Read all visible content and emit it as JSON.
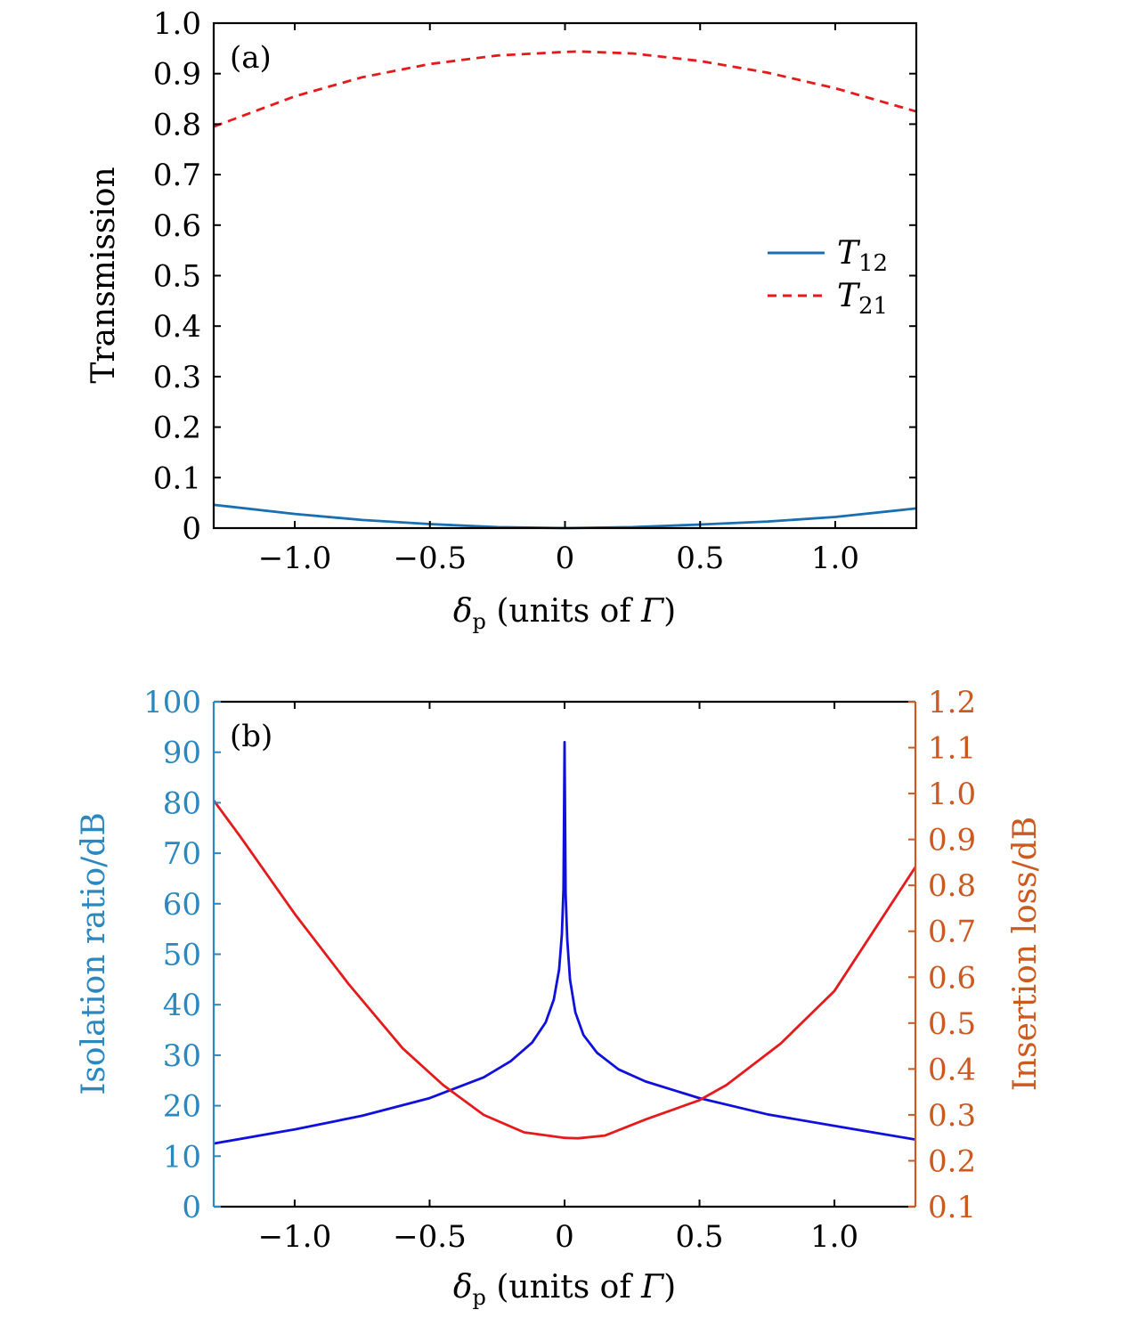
{
  "colors": {
    "axis": "#000000",
    "t12": "#1a6fb0",
    "t21": "#e41a1c",
    "isolation_curve": "#1010dd",
    "insertion_curve": "#e41a1c",
    "left_axis_b": "#2a87c0",
    "right_axis_b": "#cc5a20"
  },
  "chart_data": [
    {
      "type": "line",
      "panel_label": "(a)",
      "xlabel_symbol": "δ",
      "xlabel_sub": "p",
      "xlabel_units": " (units of ",
      "xlabel_gamma": "Γ",
      "xlabel_close": ")",
      "ylabel": "Transmission",
      "xlim": [
        -1.3,
        1.3
      ],
      "ylim": [
        0,
        1.0
      ],
      "xticks": [
        -1.0,
        -0.5,
        0,
        0.5,
        1.0
      ],
      "xtick_labels": [
        "−1.0",
        "−0.5",
        "0",
        "0.5",
        "1.0"
      ],
      "yticks": [
        0,
        0.1,
        0.2,
        0.3,
        0.4,
        0.5,
        0.6,
        0.7,
        0.8,
        0.9,
        1.0
      ],
      "ytick_labels": [
        "0",
        "0.1",
        "0.2",
        "0.3",
        "0.4",
        "0.5",
        "0.6",
        "0.7",
        "0.8",
        "0.9",
        "1.0"
      ],
      "legend_position": "center-right",
      "series": [
        {
          "name": "T",
          "name_sub": "12",
          "style": "solid",
          "x": [
            -1.3,
            -1.0,
            -0.75,
            -0.5,
            -0.25,
            0,
            0.25,
            0.5,
            0.75,
            1.0,
            1.3
          ],
          "y": [
            0.046,
            0.028,
            0.016,
            0.008,
            0.002,
            0.0,
            0.002,
            0.007,
            0.013,
            0.022,
            0.039
          ]
        },
        {
          "name": "T",
          "name_sub": "21",
          "style": "dashed",
          "x": [
            -1.3,
            -1.0,
            -0.75,
            -0.5,
            -0.25,
            0,
            0.05,
            0.25,
            0.5,
            0.75,
            1.0,
            1.3
          ],
          "y": [
            0.795,
            0.855,
            0.893,
            0.919,
            0.936,
            0.943,
            0.944,
            0.94,
            0.925,
            0.902,
            0.871,
            0.825
          ]
        }
      ]
    },
    {
      "type": "line",
      "panel_label": "(b)",
      "xlabel_symbol": "δ",
      "xlabel_sub": "p",
      "xlabel_units": " (units of ",
      "xlabel_gamma": "Γ",
      "xlabel_close": ")",
      "ylabel": "Isolation ratio/dB",
      "ylabel_right": "Insertion loss/dB",
      "xlim": [
        -1.3,
        1.3
      ],
      "ylim": [
        0,
        100
      ],
      "ylim_right": [
        0.1,
        1.2
      ],
      "xticks": [
        -1.0,
        -0.5,
        0,
        0.5,
        1.0
      ],
      "xtick_labels": [
        "−1.0",
        "−0.5",
        "0",
        "0.5",
        "1.0"
      ],
      "yticks": [
        0,
        10,
        20,
        30,
        40,
        50,
        60,
        70,
        80,
        90,
        100
      ],
      "ytick_labels": [
        "0",
        "10",
        "20",
        "30",
        "40",
        "50",
        "60",
        "70",
        "80",
        "90",
        "100"
      ],
      "yticks_right": [
        0.1,
        0.2,
        0.3,
        0.4,
        0.5,
        0.6,
        0.7,
        0.8,
        0.9,
        1.0,
        1.1,
        1.2
      ],
      "ytick_labels_right": [
        "0.1",
        "0.2",
        "0.3",
        "0.4",
        "0.5",
        "0.6",
        "0.7",
        "0.8",
        "0.9",
        "1.0",
        "1.1",
        "1.2"
      ],
      "series": [
        {
          "axis": "left",
          "x": [
            -1.3,
            -1.0,
            -0.75,
            -0.5,
            -0.3,
            -0.2,
            -0.12,
            -0.07,
            -0.04,
            -0.02,
            -0.01,
            -0.004,
            0,
            0.004,
            0.01,
            0.02,
            0.04,
            0.07,
            0.12,
            0.2,
            0.3,
            0.5,
            0.75,
            1.0,
            1.3
          ],
          "y": [
            12.5,
            15.3,
            18.0,
            21.5,
            25.6,
            28.8,
            32.5,
            36.5,
            41.0,
            47.0,
            54.0,
            63.0,
            92.0,
            62.0,
            53.0,
            45.0,
            38.5,
            34.0,
            30.5,
            27.2,
            24.8,
            21.5,
            18.3,
            16.0,
            13.3
          ]
        },
        {
          "axis": "right",
          "x": [
            -1.3,
            -1.2,
            -1.0,
            -0.8,
            -0.6,
            -0.45,
            -0.3,
            -0.15,
            0,
            0.05,
            0.15,
            0.3,
            0.5,
            0.6,
            0.8,
            1.0,
            1.3
          ],
          "y": [
            0.985,
            0.905,
            0.738,
            0.585,
            0.445,
            0.365,
            0.3,
            0.262,
            0.25,
            0.249,
            0.255,
            0.29,
            0.332,
            0.365,
            0.455,
            0.57,
            0.84
          ]
        }
      ]
    }
  ]
}
